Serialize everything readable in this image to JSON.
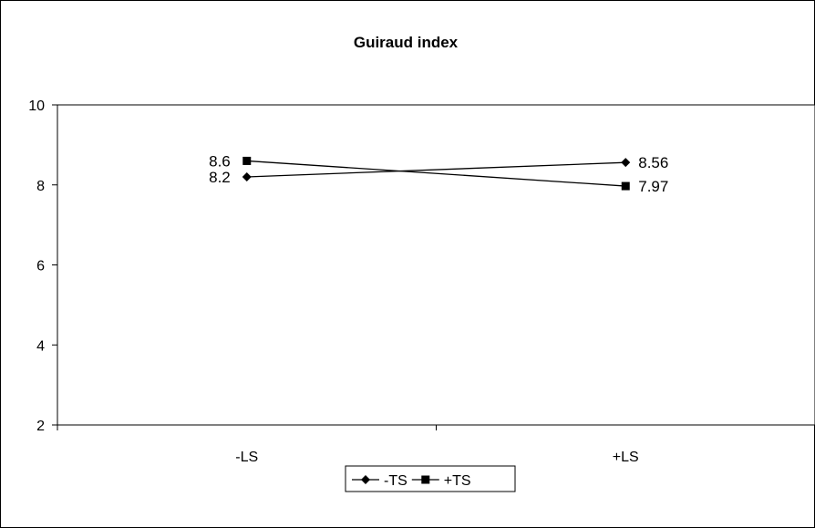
{
  "chart_data": {
    "type": "line",
    "title": "Guiraud index",
    "xlabel": "",
    "ylabel": "",
    "categories": [
      "-LS",
      "+LS"
    ],
    "ylim": [
      2,
      10
    ],
    "yticks": [
      2,
      4,
      6,
      8,
      10
    ],
    "grid": false,
    "legend_position": "bottom",
    "series": [
      {
        "name": "-TS",
        "values": [
          8.2,
          8.56
        ],
        "labels": [
          "8.2",
          "8.56"
        ],
        "marker": "diamond",
        "color": "#000000"
      },
      {
        "name": "+TS",
        "values": [
          8.6,
          7.97
        ],
        "labels": [
          "8.6",
          "7.97"
        ],
        "marker": "square",
        "color": "#000000"
      }
    ]
  }
}
